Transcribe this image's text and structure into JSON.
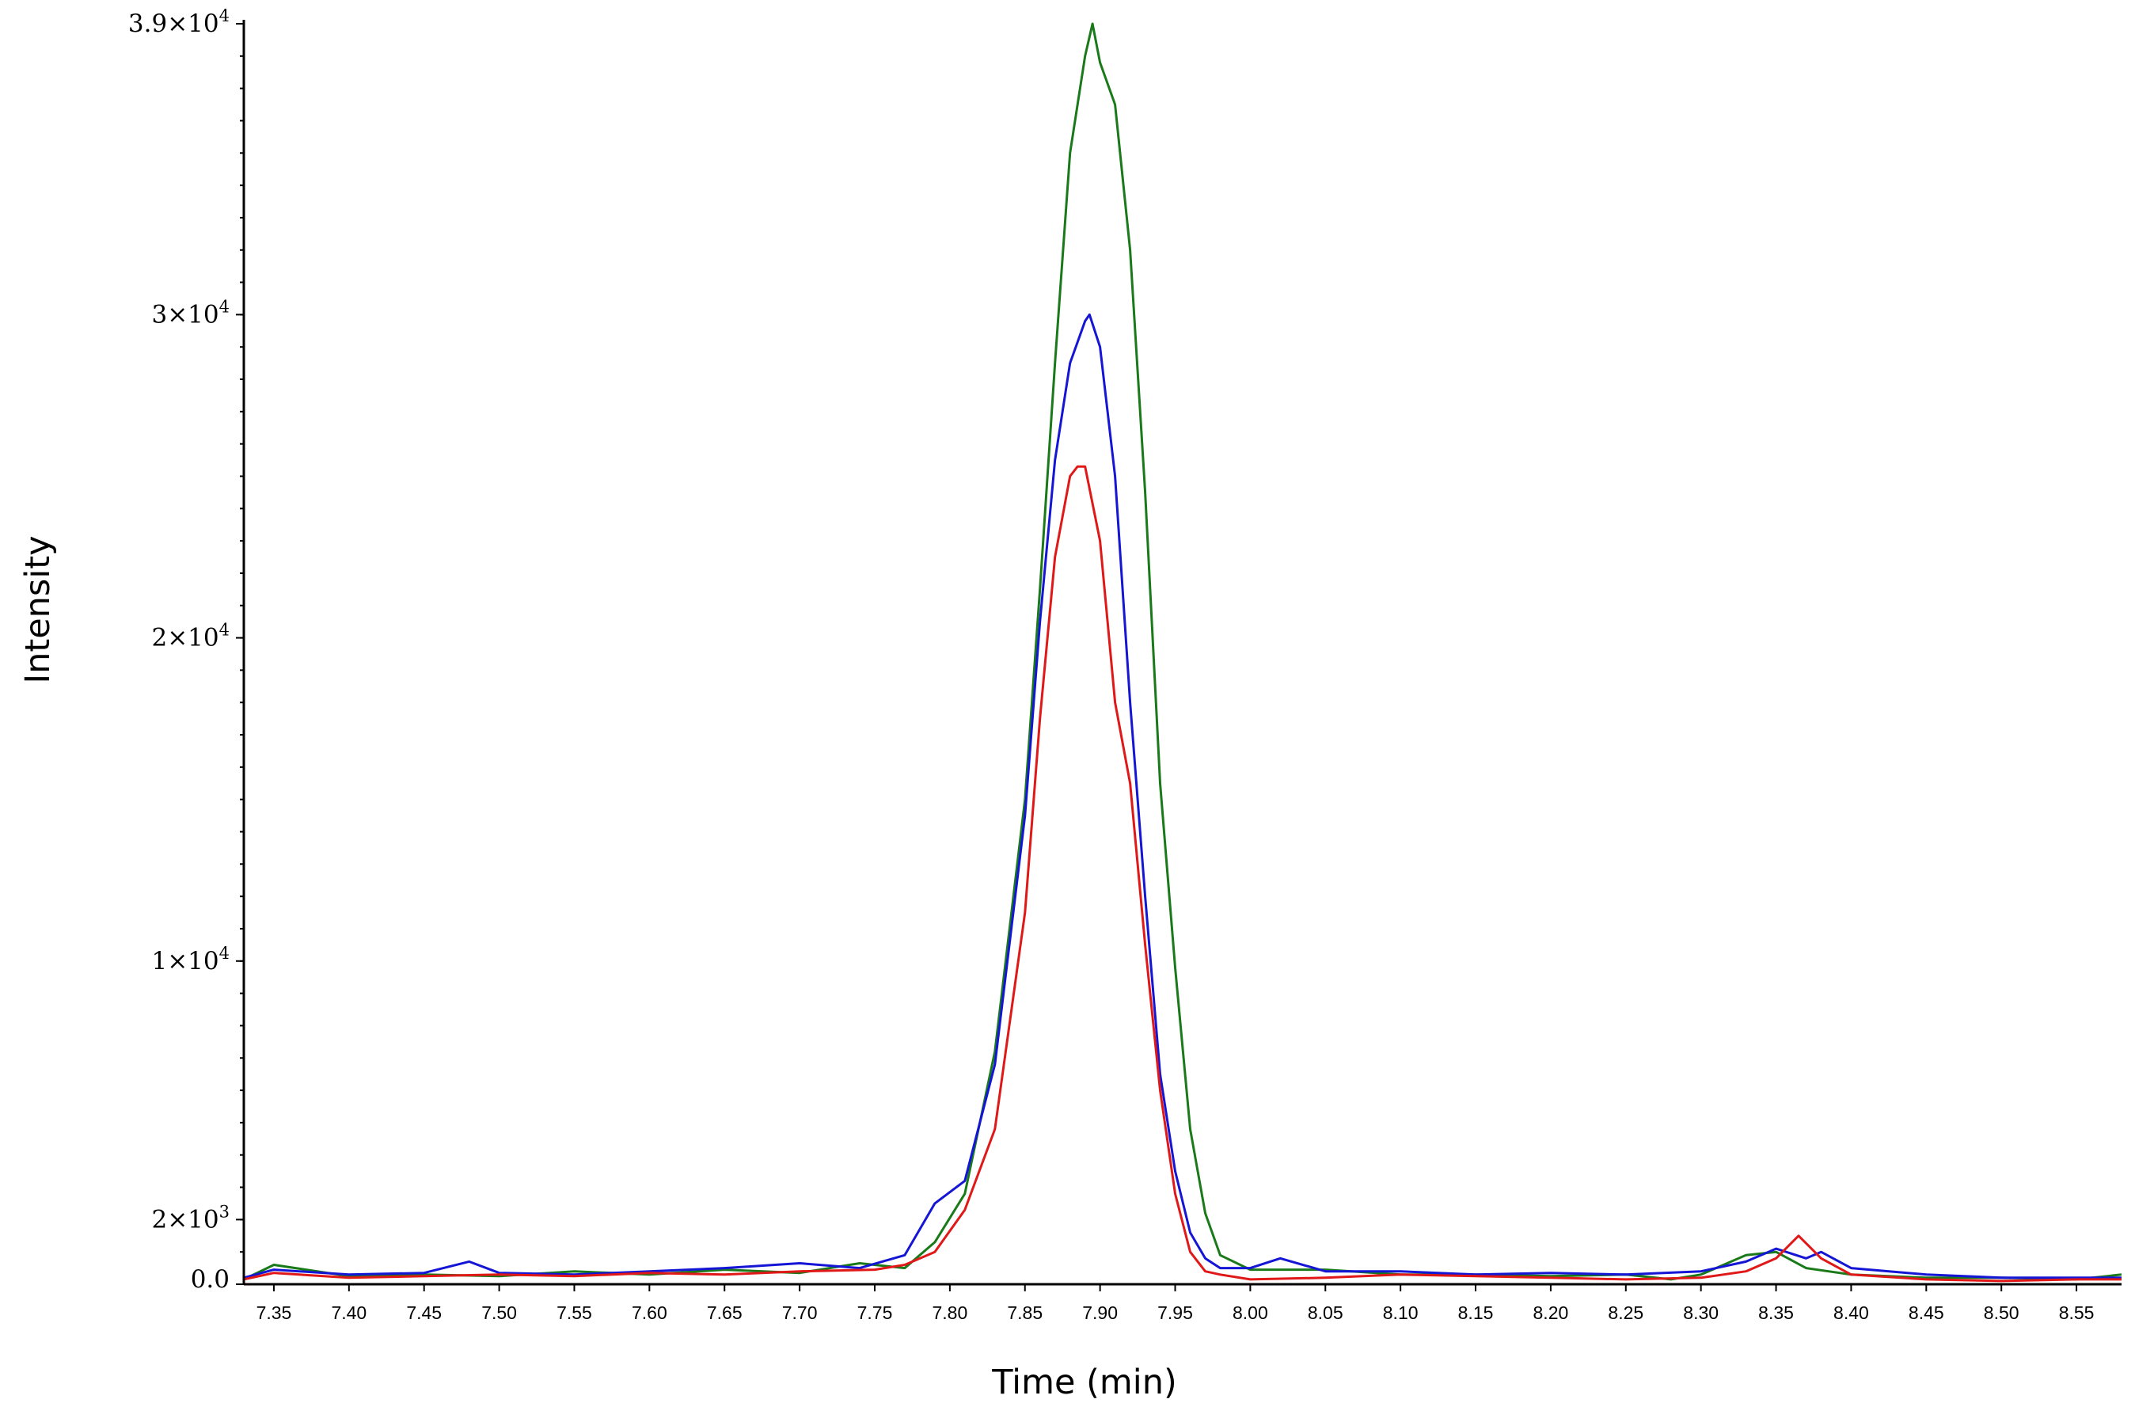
{
  "chart_data": {
    "type": "line",
    "xlabel": "Time (min)",
    "ylabel": "Intensity",
    "xlim": [
      7.33,
      8.58
    ],
    "ylim": [
      0,
      39000
    ],
    "grid": false,
    "legend": "none",
    "x_ticks": [
      {
        "value": 7.35,
        "label": "7.35"
      },
      {
        "value": 7.4,
        "label": "7.40"
      },
      {
        "value": 7.45,
        "label": "7.45"
      },
      {
        "value": 7.5,
        "label": "7.50"
      },
      {
        "value": 7.55,
        "label": "7.55"
      },
      {
        "value": 7.6,
        "label": "7.60"
      },
      {
        "value": 7.65,
        "label": "7.65"
      },
      {
        "value": 7.7,
        "label": "7.70"
      },
      {
        "value": 7.75,
        "label": "7.75"
      },
      {
        "value": 7.8,
        "label": "7.80"
      },
      {
        "value": 7.85,
        "label": "7.85"
      },
      {
        "value": 7.9,
        "label": "7.90"
      },
      {
        "value": 7.95,
        "label": "7.95"
      },
      {
        "value": 8.0,
        "label": "8.00"
      },
      {
        "value": 8.05,
        "label": "8.05"
      },
      {
        "value": 8.1,
        "label": "8.10"
      },
      {
        "value": 8.15,
        "label": "8.15"
      },
      {
        "value": 8.2,
        "label": "8.20"
      },
      {
        "value": 8.25,
        "label": "8.25"
      },
      {
        "value": 8.3,
        "label": "8.30"
      },
      {
        "value": 8.35,
        "label": "8.35"
      },
      {
        "value": 8.4,
        "label": "8.40"
      },
      {
        "value": 8.45,
        "label": "8.45"
      },
      {
        "value": 8.5,
        "label": "8.50"
      },
      {
        "value": 8.55,
        "label": "8.55"
      }
    ],
    "y_ticks": [
      {
        "value": 0,
        "mantissa": "0.0",
        "exp": ""
      },
      {
        "value": 2000,
        "mantissa": "2×10",
        "exp": "3"
      },
      {
        "value": 10000,
        "mantissa": "1×10",
        "exp": "4"
      },
      {
        "value": 20000,
        "mantissa": "2×10",
        "exp": "4"
      },
      {
        "value": 30000,
        "mantissa": "3×10",
        "exp": "4"
      },
      {
        "value": 39000,
        "mantissa": "3.9×10",
        "exp": "4"
      }
    ],
    "series": [
      {
        "color": "#1a7a1a",
        "x": [
          7.33,
          7.35,
          7.4,
          7.45,
          7.5,
          7.55,
          7.6,
          7.65,
          7.7,
          7.74,
          7.77,
          7.79,
          7.81,
          7.83,
          7.85,
          7.86,
          7.87,
          7.88,
          7.89,
          7.895,
          7.9,
          7.91,
          7.92,
          7.93,
          7.94,
          7.95,
          7.96,
          7.97,
          7.98,
          8.0,
          8.05,
          8.1,
          8.15,
          8.2,
          8.25,
          8.28,
          8.3,
          8.33,
          8.35,
          8.37,
          8.4,
          8.45,
          8.5,
          8.55,
          8.58
        ],
        "y": [
          150,
          600,
          250,
          300,
          250,
          400,
          300,
          450,
          350,
          650,
          500,
          1300,
          2800,
          7200,
          15000,
          21500,
          28500,
          35000,
          38000,
          39000,
          37800,
          36500,
          32000,
          24500,
          15500,
          9800,
          4800,
          2200,
          900,
          450,
          450,
          300,
          300,
          250,
          300,
          150,
          300,
          900,
          1000,
          500,
          300,
          200,
          200,
          150,
          300
        ]
      },
      {
        "color": "#1515d6",
        "x": [
          7.33,
          7.35,
          7.4,
          7.45,
          7.48,
          7.5,
          7.55,
          7.6,
          7.65,
          7.7,
          7.74,
          7.77,
          7.79,
          7.81,
          7.83,
          7.85,
          7.86,
          7.87,
          7.88,
          7.89,
          7.893,
          7.9,
          7.91,
          7.92,
          7.93,
          7.94,
          7.95,
          7.96,
          7.97,
          7.98,
          8.0,
          8.02,
          8.05,
          8.1,
          8.15,
          8.2,
          8.25,
          8.3,
          8.33,
          8.35,
          8.37,
          8.38,
          8.4,
          8.45,
          8.5,
          8.55,
          8.58
        ],
        "y": [
          200,
          450,
          300,
          350,
          700,
          350,
          300,
          400,
          500,
          650,
          500,
          900,
          2500,
          3200,
          6800,
          14500,
          20500,
          25500,
          28500,
          29800,
          30000,
          29000,
          25000,
          18000,
          12000,
          6500,
          3500,
          1600,
          800,
          500,
          500,
          800,
          400,
          400,
          300,
          350,
          300,
          400,
          700,
          1100,
          800,
          1000,
          500,
          300,
          200,
          200,
          200
        ]
      },
      {
        "color": "#e01818",
        "x": [
          7.33,
          7.35,
          7.4,
          7.45,
          7.5,
          7.55,
          7.6,
          7.65,
          7.7,
          7.75,
          7.77,
          7.79,
          7.81,
          7.83,
          7.85,
          7.86,
          7.87,
          7.88,
          7.885,
          7.89,
          7.9,
          7.91,
          7.92,
          7.93,
          7.94,
          7.95,
          7.96,
          7.97,
          7.98,
          8.0,
          8.05,
          8.1,
          8.15,
          8.2,
          8.25,
          8.3,
          8.33,
          8.35,
          8.365,
          8.38,
          8.4,
          8.45,
          8.5,
          8.55,
          8.58
        ],
        "y": [
          150,
          350,
          200,
          250,
          300,
          250,
          350,
          300,
          400,
          450,
          600,
          1000,
          2300,
          4800,
          11500,
          17500,
          22500,
          25000,
          25300,
          25300,
          23000,
          18000,
          15500,
          10500,
          6000,
          2800,
          1000,
          400,
          300,
          150,
          200,
          300,
          250,
          200,
          150,
          200,
          400,
          800,
          1500,
          800,
          300,
          150,
          100,
          150,
          150
        ]
      }
    ]
  }
}
